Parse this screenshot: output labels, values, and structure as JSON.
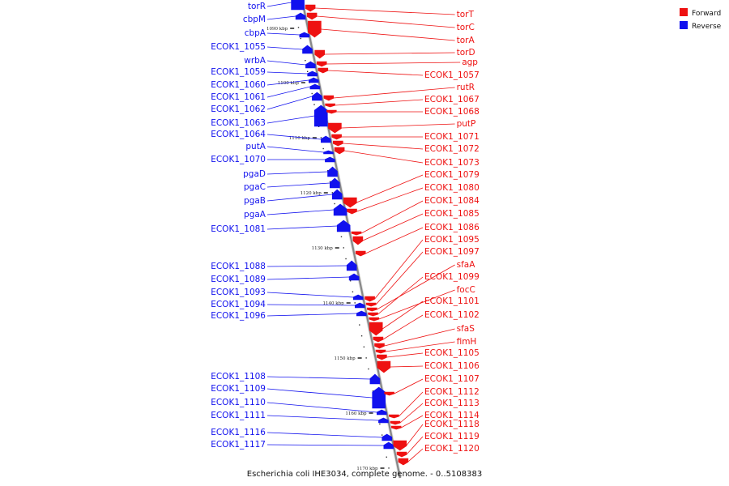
{
  "caption": "Escherichia coli IHE3034, complete genome. - 0..5108383",
  "legend": [
    {
      "label": "Forward",
      "color": "#ee1111"
    },
    {
      "label": "Reverse",
      "color": "#1111ee"
    }
  ],
  "colors": {
    "forward": "#ee1111",
    "reverse": "#1111ee",
    "backbone": "#888888"
  },
  "ticks": [
    "1090 kbp",
    "1100 kbp",
    "1110 kbp",
    "1120 kbp",
    "1130 kbp",
    "1140 kbp",
    "1150 kbp",
    "1160 kbp",
    "1170 kbp"
  ],
  "reverse_genes": [
    {
      "label": "torR"
    },
    {
      "label": "cbpM"
    },
    {
      "label": "cbpA"
    },
    {
      "label": "ECOK1_1055"
    },
    {
      "label": "wrbA"
    },
    {
      "label": "ECOK1_1059"
    },
    {
      "label": "ECOK1_1060"
    },
    {
      "label": "ECOK1_1061"
    },
    {
      "label": "ECOK1_1062"
    },
    {
      "label": "ECOK1_1063"
    },
    {
      "label": "ECOK1_1064"
    },
    {
      "label": "putA"
    },
    {
      "label": "ECOK1_1070"
    },
    {
      "label": "pgaD"
    },
    {
      "label": "pgaC"
    },
    {
      "label": "pgaB"
    },
    {
      "label": "pgaA"
    },
    {
      "label": "ECOK1_1081"
    },
    {
      "label": "ECOK1_1088"
    },
    {
      "label": "ECOK1_1089"
    },
    {
      "label": "ECOK1_1093"
    },
    {
      "label": "ECOK1_1094"
    },
    {
      "label": "ECOK1_1096"
    },
    {
      "label": "ECOK1_1108"
    },
    {
      "label": "ECOK1_1109"
    },
    {
      "label": "ECOK1_1110"
    },
    {
      "label": "ECOK1_1111"
    },
    {
      "label": "ECOK1_1116"
    },
    {
      "label": "ECOK1_1117"
    }
  ],
  "forward_genes": [
    {
      "label": "torT"
    },
    {
      "label": "torC"
    },
    {
      "label": "torA"
    },
    {
      "label": "torD"
    },
    {
      "label": "agp"
    },
    {
      "label": "ECOK1_1057"
    },
    {
      "label": "rutR"
    },
    {
      "label": "ECOK1_1067"
    },
    {
      "label": "ECOK1_1068"
    },
    {
      "label": "putP"
    },
    {
      "label": "ECOK1_1071"
    },
    {
      "label": "ECOK1_1072"
    },
    {
      "label": "ECOK1_1073"
    },
    {
      "label": "ECOK1_1079"
    },
    {
      "label": "ECOK1_1080"
    },
    {
      "label": "ECOK1_1084"
    },
    {
      "label": "ECOK1_1085"
    },
    {
      "label": "ECOK1_1086"
    },
    {
      "label": "ECOK1_1095"
    },
    {
      "label": "ECOK1_1097"
    },
    {
      "label": "sfaA"
    },
    {
      "label": "ECOK1_1099"
    },
    {
      "label": "focC"
    },
    {
      "label": "ECOK1_1101"
    },
    {
      "label": "ECOK1_1102"
    },
    {
      "label": "sfaS"
    },
    {
      "label": "fimH"
    },
    {
      "label": "ECOK1_1105"
    },
    {
      "label": "ECOK1_1106"
    },
    {
      "label": "ECOK1_1107"
    },
    {
      "label": "ECOK1_1112"
    },
    {
      "label": "ECOK1_1113"
    },
    {
      "label": "ECOK1_1114"
    },
    {
      "label": "ECOK1_1118"
    },
    {
      "label": "ECOK1_1119"
    },
    {
      "label": "ECOK1_1120"
    }
  ]
}
